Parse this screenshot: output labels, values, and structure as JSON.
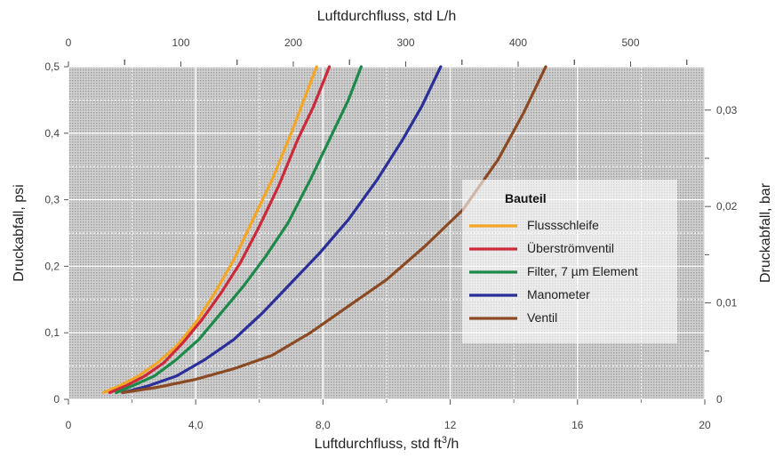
{
  "chart_data": {
    "type": "line",
    "x_bottom": {
      "label": "Luftdurchfluss, std ft",
      "label_sup": "3",
      "label_tail": "/h",
      "range": [
        0,
        20
      ],
      "ticks": [
        "0",
        "4,0",
        "8,0",
        "12",
        "16",
        "20"
      ],
      "tick_values": [
        0,
        4,
        8,
        12,
        16,
        20
      ]
    },
    "x_top": {
      "label": "Luftdurchfluss, std L/h",
      "ticks": [
        "0",
        "100",
        "200",
        "300",
        "400",
        "500"
      ],
      "tick_values": [
        0,
        100,
        200,
        300,
        400,
        500
      ],
      "range": [
        0,
        566
      ]
    },
    "y_left": {
      "label": "Druckabfall, psi",
      "range": [
        0,
        0.5
      ],
      "ticks": [
        "0",
        "0,1",
        "0,2",
        "0,3",
        "0,4",
        "0,5"
      ],
      "tick_values": [
        0,
        0.1,
        0.2,
        0.3,
        0.4,
        0.5
      ]
    },
    "y_right": {
      "label": "Druckabfall, bar",
      "range": [
        0,
        0.0345
      ],
      "ticks": [
        "0",
        "0,01",
        "0,02",
        "0,03"
      ],
      "tick_values": [
        0,
        0.01,
        0.02,
        0.03
      ]
    },
    "grid": true,
    "legend": {
      "title": "Bauteil",
      "position": "center-right"
    },
    "series": [
      {
        "name": "Flussschleife",
        "color": "#f5a623",
        "x": [
          1.1,
          1.6,
          2.2,
          2.8,
          3.4,
          4.0,
          4.6,
          5.2,
          5.8,
          6.4,
          7.0,
          7.4,
          7.8
        ],
        "y": [
          0.01,
          0.02,
          0.035,
          0.055,
          0.08,
          0.115,
          0.16,
          0.21,
          0.27,
          0.33,
          0.4,
          0.45,
          0.5
        ]
      },
      {
        "name": "Überströmventil",
        "color": "#cc2a3a",
        "x": [
          1.3,
          1.8,
          2.4,
          3.0,
          3.6,
          4.2,
          4.8,
          5.4,
          6.0,
          6.6,
          7.2,
          7.7,
          8.2
        ],
        "y": [
          0.01,
          0.02,
          0.035,
          0.055,
          0.085,
          0.12,
          0.16,
          0.205,
          0.26,
          0.32,
          0.39,
          0.44,
          0.5
        ]
      },
      {
        "name": "Filter, 7 µm Element",
        "color": "#1e8a4a",
        "x": [
          1.5,
          2.0,
          2.7,
          3.4,
          4.1,
          4.8,
          5.5,
          6.2,
          6.9,
          7.6,
          8.3,
          8.8,
          9.2
        ],
        "y": [
          0.01,
          0.02,
          0.035,
          0.06,
          0.09,
          0.13,
          0.17,
          0.215,
          0.265,
          0.33,
          0.4,
          0.45,
          0.5
        ]
      },
      {
        "name": "Manometer",
        "color": "#2a2f9a",
        "x": [
          1.7,
          2.5,
          3.4,
          4.3,
          5.2,
          6.1,
          7.0,
          7.9,
          8.8,
          9.7,
          10.5,
          11.1,
          11.7
        ],
        "y": [
          0.01,
          0.02,
          0.035,
          0.06,
          0.09,
          0.13,
          0.175,
          0.22,
          0.27,
          0.33,
          0.39,
          0.44,
          0.5
        ]
      },
      {
        "name": "Ventil",
        "color": "#8b4a23",
        "x": [
          1.7,
          2.8,
          4.0,
          5.2,
          6.4,
          7.6,
          8.8,
          10.0,
          11.2,
          12.4,
          13.5,
          14.3,
          15.0
        ],
        "y": [
          0.01,
          0.018,
          0.03,
          0.046,
          0.066,
          0.1,
          0.14,
          0.18,
          0.23,
          0.285,
          0.36,
          0.43,
          0.5
        ]
      }
    ]
  }
}
